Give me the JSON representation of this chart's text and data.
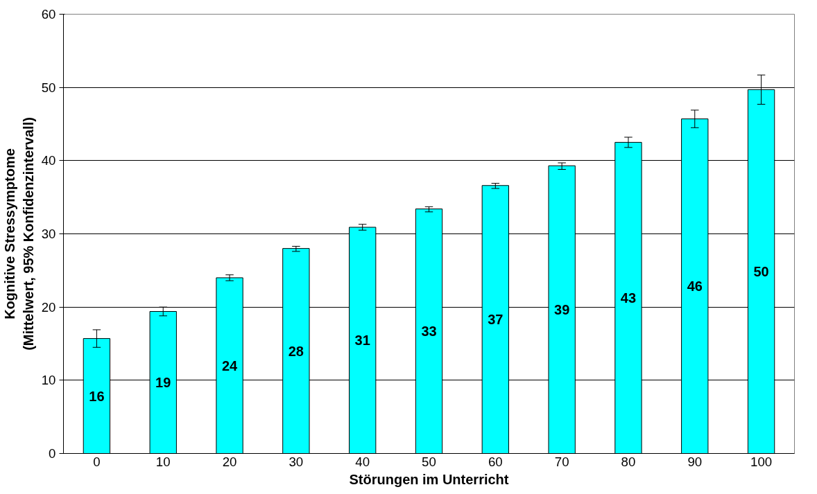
{
  "chart_data": {
    "type": "bar",
    "xlabel": "Störungen im Unterricht",
    "ylabel": "Kognitive Stressymptome\n(Mittelwert, 95% Konfidenzintervall)",
    "categories": [
      "0",
      "10",
      "20",
      "30",
      "40",
      "50",
      "60",
      "70",
      "80",
      "90",
      "100"
    ],
    "values": [
      15.7,
      19.4,
      24.0,
      28.0,
      30.9,
      33.4,
      36.6,
      39.3,
      42.5,
      45.7,
      49.7
    ],
    "errors": [
      [
        14.5,
        16.9
      ],
      [
        18.8,
        20.0
      ],
      [
        23.6,
        24.4
      ],
      [
        27.6,
        28.3
      ],
      [
        30.5,
        31.3
      ],
      [
        33.0,
        33.7
      ],
      [
        36.2,
        36.9
      ],
      [
        38.8,
        39.7
      ],
      [
        41.8,
        43.2
      ],
      [
        44.5,
        46.9
      ],
      [
        47.7,
        51.7
      ]
    ],
    "value_labels": [
      "16",
      "19",
      "24",
      "28",
      "31",
      "33",
      "37",
      "39",
      "43",
      "46",
      "50"
    ],
    "color": "#00ffff",
    "ylim": [
      0,
      60
    ],
    "yticks": [
      0,
      10,
      20,
      30,
      40,
      50,
      60
    ],
    "grid": "y"
  }
}
